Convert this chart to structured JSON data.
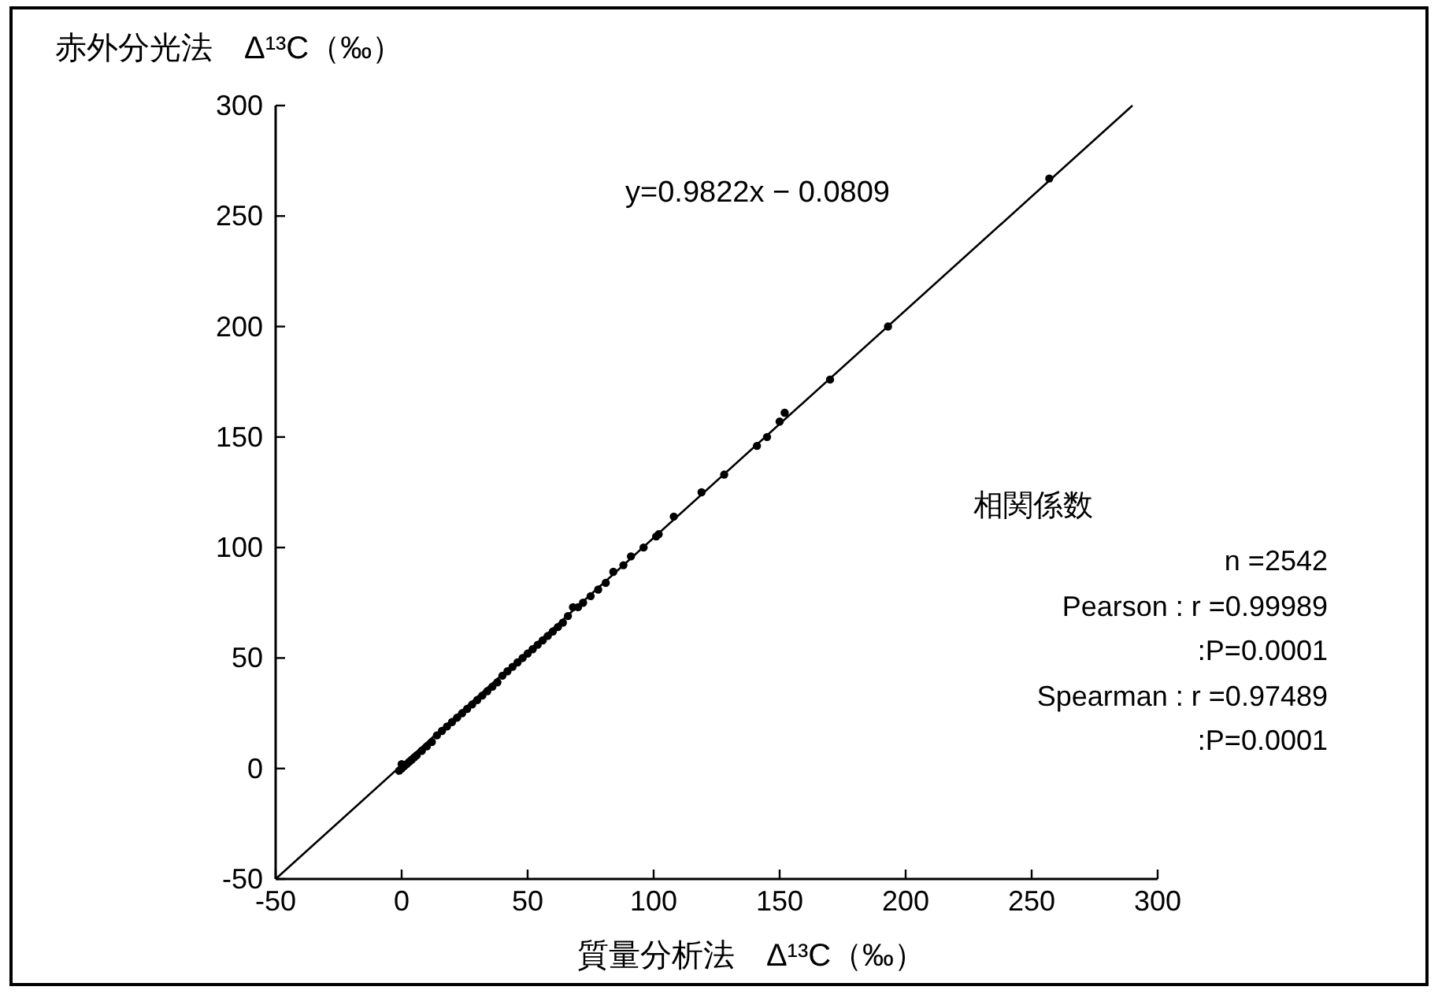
{
  "chart_data": {
    "type": "scatter",
    "xlabel": "質量分析法　Δ¹³C（‰）",
    "ylabel": "赤外分光法　Δ¹³C（‰）",
    "xlim": [
      -50,
      300
    ],
    "ylim": [
      -50,
      300
    ],
    "xticks": [
      -50,
      0,
      50,
      100,
      150,
      200,
      250,
      300
    ],
    "yticks": [
      -50,
      0,
      50,
      100,
      150,
      200,
      250,
      300
    ],
    "annotations": [
      "y=0.9822x − 0.0809",
      "相関係数",
      "n =2542",
      "Pearson : r =0.99989",
      ":P=0.0001",
      "Spearman : r =0.97489",
      ":P=0.0001"
    ],
    "series": [
      {
        "color": "#000000",
        "marker": "circle",
        "x": [
          -1,
          0,
          0,
          1,
          2,
          3,
          4,
          5,
          6,
          8,
          10,
          12,
          14,
          16,
          18,
          20,
          22,
          24,
          26,
          28,
          30,
          32,
          34,
          36,
          38,
          40,
          42,
          44,
          46,
          48,
          50,
          52,
          54,
          56,
          58,
          60,
          62,
          64,
          66,
          68,
          70,
          72,
          75,
          78,
          81,
          84,
          88,
          91,
          96,
          101,
          102,
          108,
          119,
          128,
          141,
          145,
          150,
          152,
          170,
          193,
          257
        ],
        "values": [
          -1,
          2,
          0,
          1,
          2,
          3,
          4,
          5,
          6,
          8,
          10,
          12,
          15,
          17,
          19,
          21,
          23,
          25,
          27,
          29,
          31,
          33,
          35,
          37,
          39,
          42,
          44,
          46,
          48,
          50,
          52,
          54,
          56,
          58,
          60,
          62,
          64,
          66,
          69,
          73,
          73,
          75,
          78,
          81,
          84,
          89,
          92,
          96,
          100,
          105,
          106,
          114,
          125,
          133,
          146,
          150,
          157,
          161,
          176,
          200,
          267
        ]
      },
      {
        "type": "line",
        "color": "#000000",
        "marker": "none",
        "line_style": "solid",
        "x": [
          -50,
          290
        ],
        "values": [
          -50,
          300
        ]
      }
    ]
  }
}
